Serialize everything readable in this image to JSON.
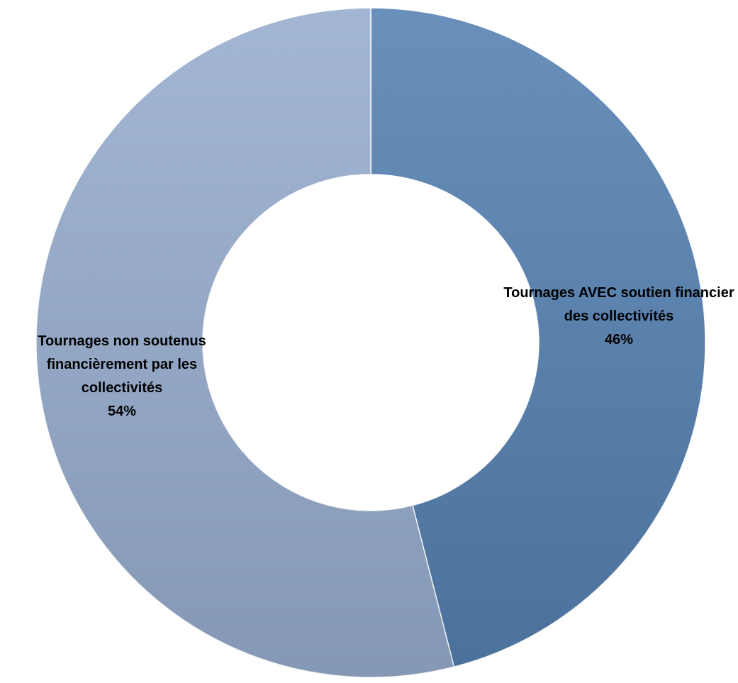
{
  "chart_data": {
    "type": "donut",
    "categories": [
      "Tournages AVEC soutien financier des collectivités",
      "Tournages non soutenus financièrement par les collectivités"
    ],
    "values": [
      46,
      54
    ],
    "value_labels": [
      "46%",
      "54%"
    ],
    "colors": [
      "#5580b2",
      "#96adcf"
    ]
  }
}
